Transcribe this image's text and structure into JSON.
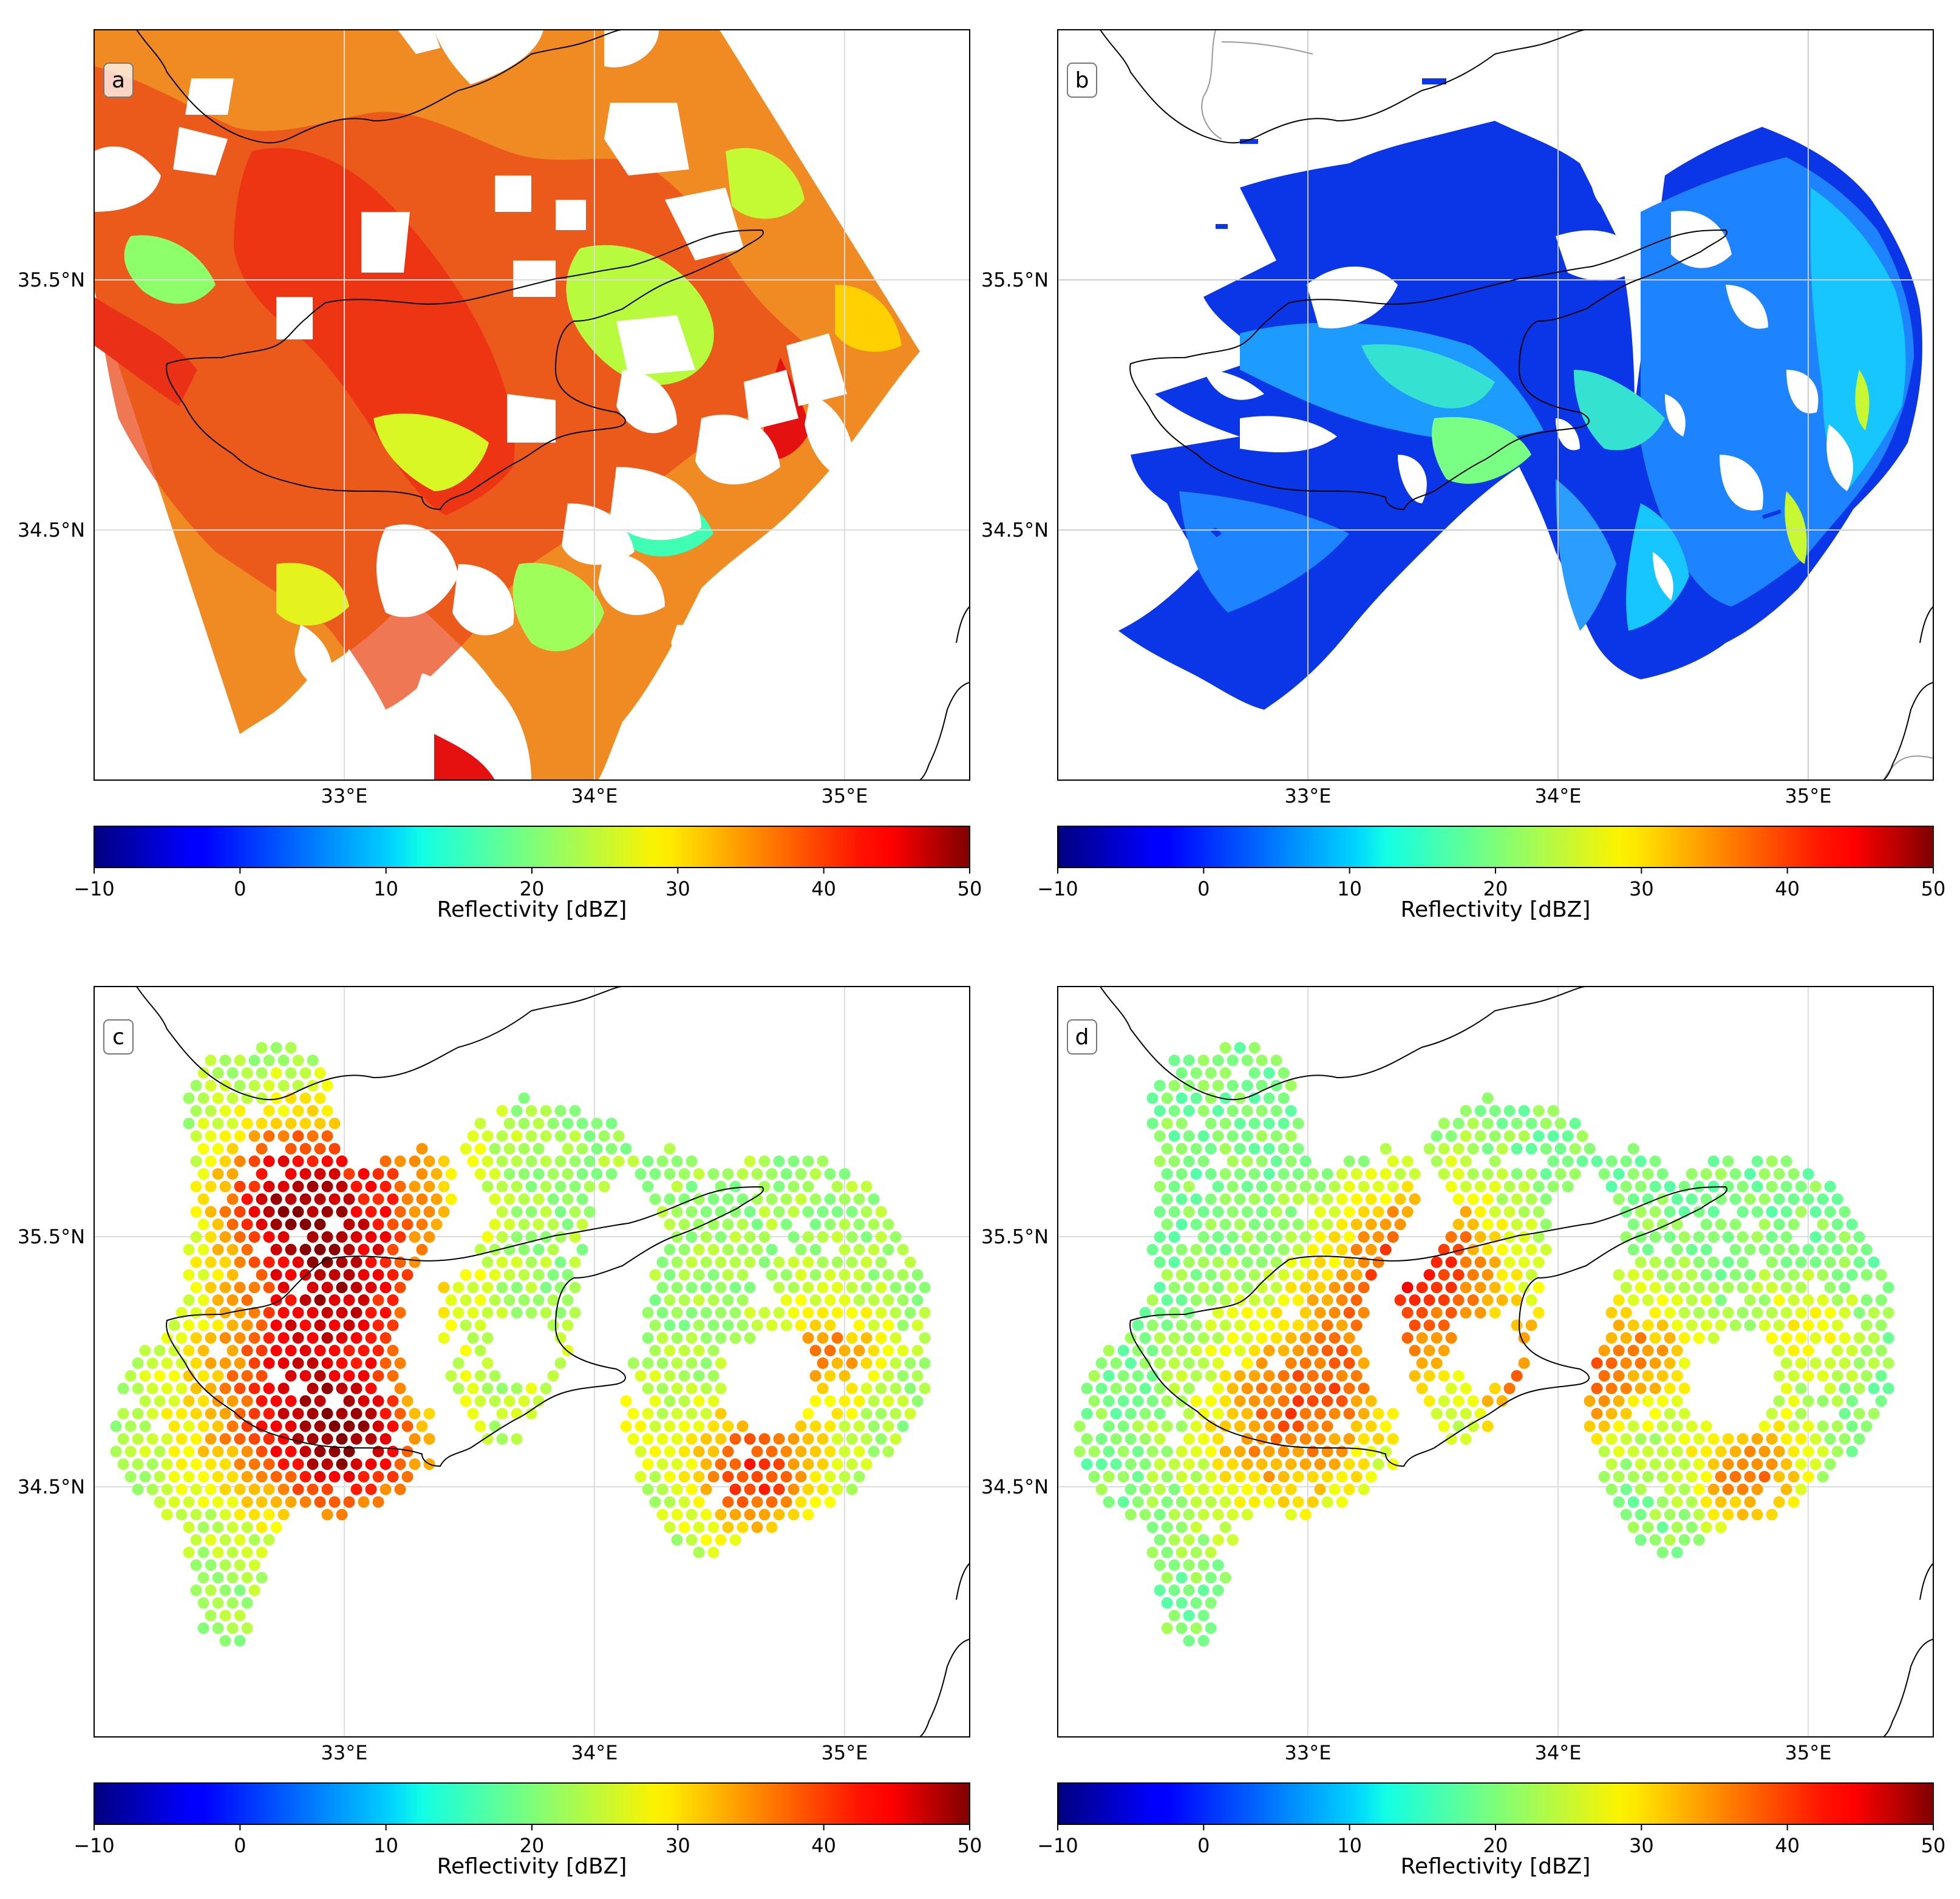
{
  "colorbar": {
    "label": "Reflectivity [dBZ]",
    "range": [
      -10,
      50
    ],
    "ticks": [
      "−10",
      "0",
      "10",
      "20",
      "30",
      "40",
      "50"
    ],
    "tick_values": [
      -10,
      0,
      10,
      20,
      30,
      40,
      50
    ],
    "colormap": "jet"
  },
  "axes": {
    "lon_range": [
      32.0,
      35.5
    ],
    "lat_range": [
      33.5,
      36.5
    ],
    "lon_ticks": [
      "33°E",
      "34°E",
      "35°E"
    ],
    "lon_tick_values": [
      33,
      34,
      35
    ],
    "lat_ticks": [
      "35.5°N",
      "34.5°N"
    ],
    "lat_tick_values": [
      35.5,
      34.5
    ],
    "grid": true
  },
  "panels": [
    {
      "id": "a",
      "label": "a",
      "type": "gridded-filled-contour",
      "range_dbz": [
        20,
        50
      ]
    },
    {
      "id": "b",
      "label": "b",
      "type": "radar-ppi-sector",
      "range_dbz": [
        -5,
        25
      ]
    },
    {
      "id": "c",
      "label": "c",
      "type": "scatter-points",
      "range_dbz": [
        20,
        50
      ]
    },
    {
      "id": "d",
      "label": "d",
      "type": "scatter-points",
      "range_dbz": [
        18,
        45
      ]
    }
  ],
  "colors": {
    "coastline": "#000000",
    "border": "#999999",
    "grid": "#d9d9d9"
  }
}
